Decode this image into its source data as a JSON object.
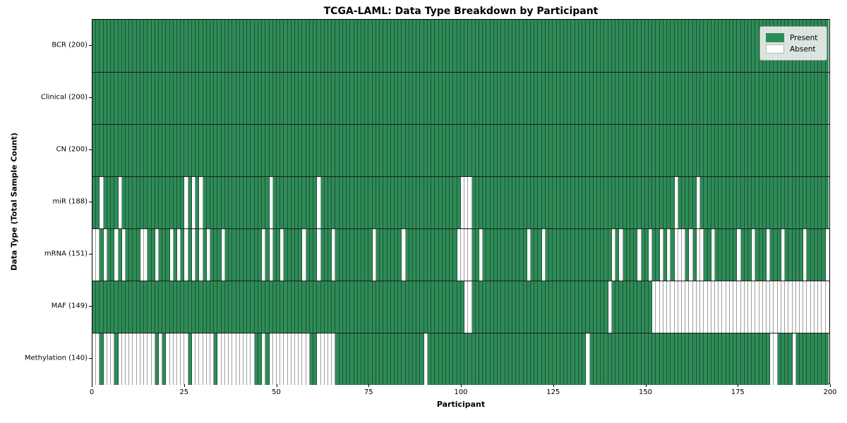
{
  "chart_data": {
    "type": "heatmap",
    "title": "TCGA-LAML: Data Type Breakdown by Participant",
    "xlabel": "Participant",
    "ylabel": "Data Type (Total Sample Count)",
    "x_range": [
      0,
      200
    ],
    "x_ticks": [
      0,
      25,
      50,
      75,
      100,
      125,
      150,
      175,
      200
    ],
    "n_participants": 200,
    "grid": false,
    "legend_position": "upper right",
    "colors": {
      "present": "#2e8b57",
      "absent": "#ffffff",
      "cell_border": "rgba(0,0,0,0.38)",
      "row_border": "#1c1c1c"
    },
    "legend": {
      "items": [
        {
          "label": "Present",
          "value": "present",
          "color": "#2e8b57"
        },
        {
          "label": "Absent",
          "value": "absent",
          "color": "#ffffff"
        }
      ]
    },
    "rows": [
      {
        "label": "BCR (200)",
        "name": "BCR",
        "present_count": 200,
        "absent_participants": []
      },
      {
        "label": "Clinical (200)",
        "name": "Clinical",
        "present_count": 200,
        "absent_participants": []
      },
      {
        "label": "CN (200)",
        "name": "CN",
        "present_count": 200,
        "absent_participants": []
      },
      {
        "label": "miR (188)",
        "name": "miR",
        "present_count": 188,
        "absent_participants": [
          2,
          7,
          25,
          27,
          29,
          48,
          61,
          100,
          101,
          102,
          158,
          164
        ]
      },
      {
        "label": "mRNA (151)",
        "name": "mRNA",
        "present_count": 151,
        "absent_participants": [
          0,
          1,
          3,
          6,
          8,
          13,
          14,
          17,
          21,
          23,
          25,
          27,
          29,
          31,
          35,
          46,
          48,
          51,
          57,
          61,
          65,
          76,
          84,
          99,
          100,
          101,
          102,
          105,
          118,
          122,
          141,
          143,
          148,
          151,
          154,
          156,
          158,
          159,
          160,
          162,
          164,
          165,
          168,
          175,
          179,
          183,
          187,
          193,
          199
        ]
      },
      {
        "label": "MAF (149)",
        "name": "MAF",
        "present_count": 149,
        "absent_participants": [
          101,
          102,
          140,
          152,
          153,
          154,
          155,
          156,
          157,
          158,
          159,
          160,
          161,
          162,
          163,
          164,
          165,
          166,
          167,
          168,
          169,
          170,
          171,
          172,
          173,
          174,
          175,
          176,
          177,
          178,
          179,
          180,
          181,
          182,
          183,
          184,
          185,
          186,
          187,
          188,
          189,
          190,
          191,
          192,
          193,
          194,
          195,
          196,
          197,
          198,
          199
        ]
      },
      {
        "label": "Methylation (140)",
        "name": "Methylation",
        "present_count": 140,
        "absent_participants": [
          0,
          1,
          3,
          4,
          5,
          7,
          8,
          9,
          10,
          11,
          12,
          13,
          14,
          15,
          16,
          18,
          20,
          21,
          22,
          23,
          24,
          25,
          27,
          28,
          29,
          30,
          31,
          32,
          34,
          35,
          36,
          37,
          38,
          39,
          40,
          41,
          42,
          43,
          46,
          48,
          49,
          50,
          51,
          52,
          53,
          54,
          55,
          56,
          57,
          58,
          61,
          62,
          63,
          64,
          65,
          90,
          134,
          184,
          185,
          190
        ]
      }
    ]
  }
}
